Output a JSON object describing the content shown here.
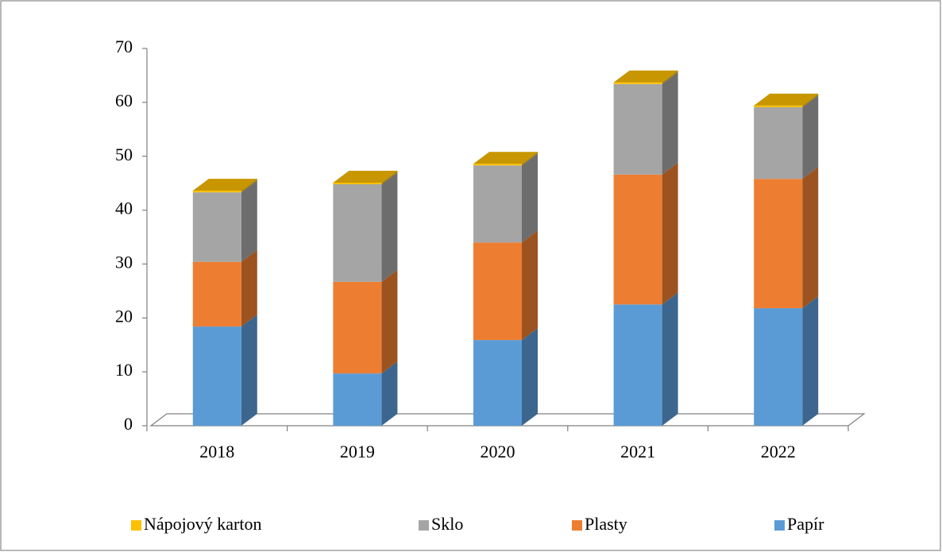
{
  "chart_data": {
    "type": "bar3d_stacked",
    "categories": [
      "2018",
      "2019",
      "2020",
      "2021",
      "2022"
    ],
    "series": [
      {
        "name": "Papír",
        "color": "#5b9bd5",
        "values": [
          18.4,
          9.7,
          15.9,
          22.5,
          21.8
        ]
      },
      {
        "name": "Plasty",
        "color": "#ed7d31",
        "values": [
          12,
          17,
          18.1,
          24.1,
          24
        ]
      },
      {
        "name": "Sklo",
        "color": "#a5a5a5",
        "values": [
          12.9,
          18.1,
          14.3,
          16.8,
          13.3
        ]
      },
      {
        "name": "Nápojový karton",
        "color": "#ffc000",
        "values": [
          0.3,
          0.3,
          0.3,
          0.3,
          0.3
        ]
      }
    ],
    "ylim": [
      0,
      70
    ],
    "yticks": [
      0,
      10,
      20,
      30,
      40,
      50,
      60,
      70
    ]
  }
}
